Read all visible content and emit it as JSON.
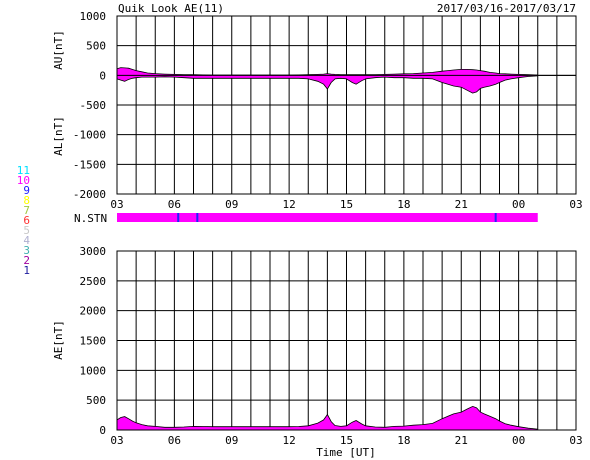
{
  "header": {
    "title": "Quik Look AE(11)",
    "date_range": "2017/03/16-2017/03/17"
  },
  "stations": {
    "label": "N.STN",
    "legend": [
      {
        "num": "11",
        "color": "#00e0ff"
      },
      {
        "num": "10",
        "color": "#ff00ff"
      },
      {
        "num": "9",
        "color": "#2020ff"
      },
      {
        "num": "8",
        "color": "#ffff00"
      },
      {
        "num": "7",
        "color": "#a0c840"
      },
      {
        "num": "6",
        "color": "#ff3030"
      },
      {
        "num": "5",
        "color": "#c8c8c8"
      },
      {
        "num": "4",
        "color": "#b0b0d0"
      },
      {
        "num": "3",
        "color": "#40b0b0"
      },
      {
        "num": "2",
        "color": "#a000a0"
      },
      {
        "num": "1",
        "color": "#2020a0"
      }
    ],
    "bar_color": "#ff00ff",
    "bar_end_hour": 25,
    "dips": [
      6.2,
      7.2,
      22.8
    ]
  },
  "chart_data": [
    {
      "type": "area",
      "name": "au-al-panel",
      "ylabel_top": "AU[nT]",
      "ylabel_bottom": "AL[nT]",
      "ylim": [
        -2000,
        1000
      ],
      "yticks": [
        "1000",
        "500",
        "0",
        "-500",
        "-1000",
        "-1500",
        "-2000"
      ],
      "xlim": [
        3,
        27
      ],
      "xticks": [
        "03",
        "06",
        "09",
        "12",
        "15",
        "18",
        "21",
        "00",
        "03"
      ],
      "grid": true,
      "fill_color": "#ff00ff",
      "x_hours": [
        3.0,
        3.2,
        3.4,
        3.6,
        3.8,
        4.0,
        4.3,
        4.6,
        5.0,
        5.5,
        6.0,
        6.5,
        7.0,
        7.5,
        8.0,
        9.0,
        10.0,
        11.0,
        12.0,
        12.5,
        13.0,
        13.5,
        13.8,
        14.0,
        14.2,
        14.4,
        14.7,
        15.0,
        15.3,
        15.5,
        15.8,
        16.0,
        16.5,
        17.0,
        17.5,
        18.0,
        18.5,
        19.0,
        19.5,
        20.0,
        20.3,
        20.6,
        21.0,
        21.3,
        21.6,
        21.8,
        22.0,
        22.2,
        22.5,
        22.8,
        23.0,
        23.3,
        23.6,
        24.0,
        24.5,
        25.0
      ],
      "au": [
        110,
        130,
        125,
        120,
        100,
        80,
        60,
        40,
        30,
        20,
        15,
        10,
        10,
        8,
        5,
        5,
        5,
        5,
        5,
        8,
        10,
        15,
        20,
        30,
        20,
        15,
        10,
        10,
        10,
        10,
        10,
        10,
        10,
        15,
        20,
        25,
        30,
        40,
        50,
        70,
        80,
        90,
        100,
        100,
        95,
        90,
        80,
        70,
        50,
        40,
        30,
        25,
        20,
        15,
        10,
        5
      ],
      "al": [
        -60,
        -80,
        -100,
        -70,
        -50,
        -40,
        -30,
        -30,
        -30,
        -25,
        -30,
        -40,
        -50,
        -50,
        -50,
        -50,
        -50,
        -50,
        -50,
        -50,
        -60,
        -100,
        -150,
        -230,
        -120,
        -60,
        -50,
        -60,
        -120,
        -150,
        -90,
        -60,
        -40,
        -30,
        -40,
        -40,
        -50,
        -50,
        -60,
        -120,
        -150,
        -180,
        -200,
        -250,
        -300,
        -280,
        -220,
        -200,
        -180,
        -150,
        -120,
        -80,
        -60,
        -40,
        -20,
        -10
      ]
    },
    {
      "type": "area",
      "name": "ae-panel",
      "ylabel": "AE[nT]",
      "xlabel": "Time [UT]",
      "ylim": [
        0,
        3000
      ],
      "yticks": [
        "3000",
        "2500",
        "2000",
        "1500",
        "1000",
        "500",
        "0"
      ],
      "xlim": [
        3,
        27
      ],
      "xticks": [
        "03",
        "06",
        "09",
        "12",
        "15",
        "18",
        "21",
        "00",
        "03"
      ],
      "grid": true,
      "fill_color": "#ff00ff",
      "x_hours": [
        3.0,
        3.2,
        3.4,
        3.6,
        3.8,
        4.0,
        4.3,
        4.6,
        5.0,
        5.5,
        6.0,
        6.5,
        7.0,
        7.5,
        8.0,
        9.0,
        10.0,
        11.0,
        12.0,
        12.5,
        13.0,
        13.5,
        13.8,
        14.0,
        14.2,
        14.4,
        14.7,
        15.0,
        15.3,
        15.5,
        15.8,
        16.0,
        16.5,
        17.0,
        17.5,
        18.0,
        18.5,
        19.0,
        19.5,
        20.0,
        20.3,
        20.6,
        21.0,
        21.3,
        21.6,
        21.8,
        22.0,
        22.2,
        22.5,
        22.8,
        23.0,
        23.3,
        23.6,
        24.0,
        24.5,
        25.0
      ],
      "ae": [
        170,
        210,
        225,
        190,
        150,
        120,
        90,
        70,
        60,
        45,
        45,
        50,
        60,
        58,
        55,
        55,
        55,
        55,
        55,
        58,
        70,
        115,
        170,
        260,
        140,
        75,
        60,
        70,
        130,
        160,
        100,
        70,
        50,
        45,
        60,
        65,
        80,
        90,
        110,
        190,
        230,
        270,
        300,
        350,
        395,
        370,
        300,
        270,
        230,
        190,
        150,
        105,
        80,
        55,
        30,
        15
      ]
    }
  ]
}
